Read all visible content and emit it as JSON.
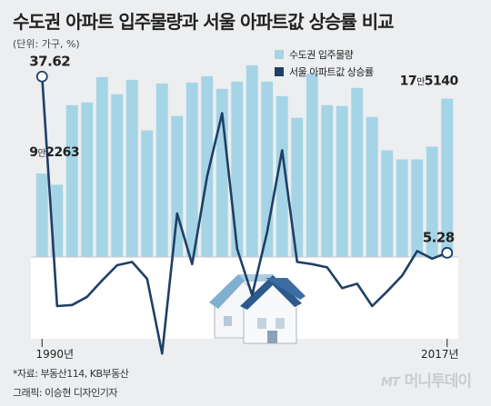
{
  "header": {
    "title": "수도권 아파트 입주물량과 서울 아파트값 상승률 비교",
    "unit": "(단위: 가구, %)"
  },
  "footer": {
    "source": "*자료: 부동산114, KB부동산",
    "credit": "그래픽: 이승현 디자인기자",
    "brand_mt": "MT",
    "brand_name": "머니투데이"
  },
  "colors": {
    "background": "#eceef0",
    "bar": "#a5d4e6",
    "line": "#1f3f66",
    "baseline_band": "#ffffff"
  },
  "chart_data": {
    "type": "bar+line",
    "x": [
      1990,
      1991,
      1992,
      1993,
      1994,
      1995,
      1996,
      1997,
      1998,
      1999,
      2000,
      2001,
      2002,
      2003,
      2004,
      2005,
      2006,
      2007,
      2008,
      2009,
      2010,
      2011,
      2012,
      2013,
      2014,
      2015,
      2016,
      2017
    ],
    "x_tick_labels": [
      "1990년",
      "2017년"
    ],
    "series": [
      {
        "name": "수도권 입주물량",
        "type": "bar",
        "axis": "left",
        "values": [
          92263,
          80000,
          168000,
          171000,
          199000,
          180000,
          196000,
          140000,
          192000,
          156000,
          193000,
          200000,
          186000,
          194000,
          212000,
          194000,
          178000,
          154000,
          203000,
          168000,
          167000,
          187000,
          155000,
          118000,
          108000,
          108000,
          122000,
          175140
        ]
      },
      {
        "name": "서울 아파트값 상승률",
        "type": "line",
        "axis": "right",
        "values": [
          37.62,
          -4.5,
          -4.3,
          -2.8,
          0.2,
          3.0,
          3.6,
          0.5,
          -13.2,
          12.5,
          3.2,
          19.3,
          30.9,
          6.0,
          -2.5,
          9.1,
          24.1,
          3.6,
          3.2,
          2.6,
          -1.2,
          -0.4,
          -4.5,
          -1.8,
          1.1,
          5.6,
          4.2,
          5.28
        ]
      }
    ],
    "annotations": [
      {
        "series": 1,
        "index": 0,
        "text": "37.62"
      },
      {
        "series": 0,
        "index": 0,
        "text_big": "9",
        "text_small": "만",
        "text_big2": "2263"
      },
      {
        "series": 0,
        "index": 27,
        "text_big": "17",
        "text_small": "만",
        "text_big2": "5140"
      },
      {
        "series": 1,
        "index": 27,
        "text": "5.28"
      }
    ],
    "bar_axis_range": [
      0,
      224000
    ],
    "line_axis_range": [
      -15,
      45
    ],
    "legend": [
      "수도권 입주물량",
      "서울 아파트값 상승률"
    ],
    "legend_position": "top-right"
  }
}
